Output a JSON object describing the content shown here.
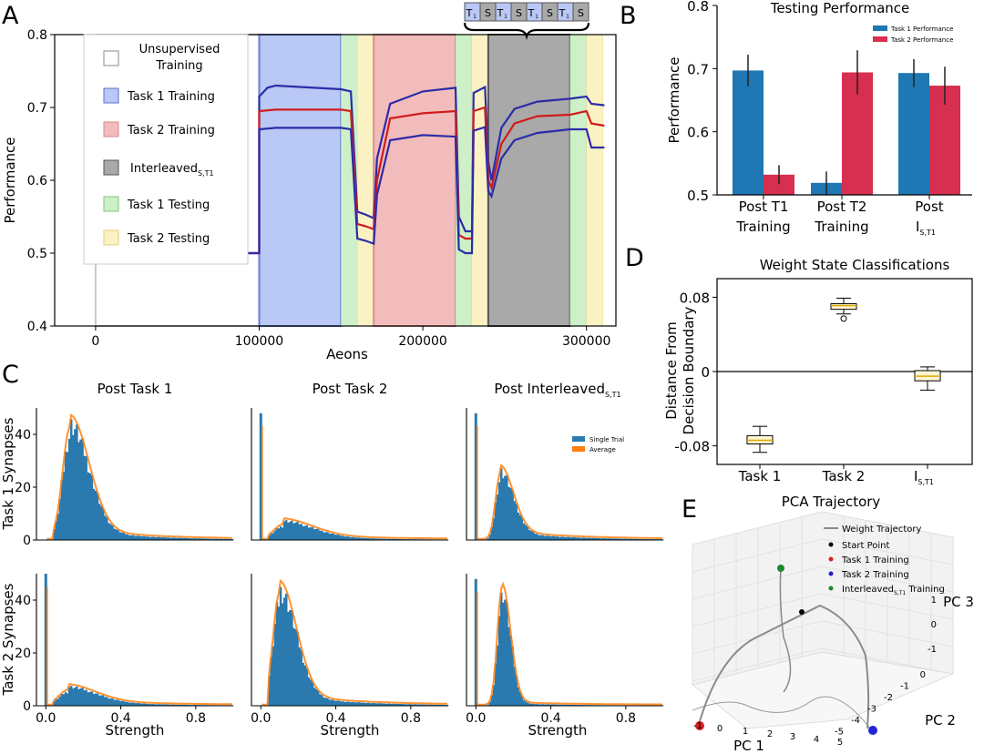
{
  "panel_letters": {
    "A": "A",
    "B": "B",
    "C": "C",
    "D": "D",
    "E": "E"
  },
  "colors": {
    "task1": "#1f77b4",
    "task2": "#d62f4f",
    "single": "#2a7ab0",
    "average": "#ff7f0e",
    "blue_band": "#b9c8f4",
    "red_band": "#f3bcbc",
    "green_band": "#cdf0c8",
    "yellow_band": "#fbf2c4",
    "gray_band": "#a9a9a9",
    "line_blue": "#2c2ca8",
    "line_red": "#d01c1c"
  },
  "chart_data": [
    {
      "id": "A",
      "type": "line",
      "xlabel": "Aeons",
      "ylabel": "Performance",
      "xlim": [
        -25000,
        318000
      ],
      "ylim": [
        0.4,
        0.8
      ],
      "xticks": [
        0,
        100000,
        200000,
        300000
      ],
      "xtick_labels": [
        "0",
        "100000",
        "200000",
        "300000"
      ],
      "yticks": [
        0.4,
        0.5,
        0.6,
        0.7,
        0.8
      ],
      "ytick_labels": [
        "0.4",
        "0.5",
        "0.6",
        "0.7",
        "0.8"
      ],
      "phases": [
        {
          "name": "Unsupervised Training",
          "start": 0,
          "end": 100000,
          "color": "white"
        },
        {
          "name": "Task 1 Training",
          "start": 100000,
          "end": 150000,
          "color": "blue"
        },
        {
          "name": "Task 1 Testing",
          "start": 150000,
          "end": 160000,
          "color": "green"
        },
        {
          "name": "Task 2 Testing",
          "start": 160000,
          "end": 170000,
          "color": "yellow"
        },
        {
          "name": "Task 2 Training",
          "start": 170000,
          "end": 220000,
          "color": "red"
        },
        {
          "name": "Task 1 Testing",
          "start": 220000,
          "end": 230000,
          "color": "green"
        },
        {
          "name": "Task 2 Testing",
          "start": 230000,
          "end": 240000,
          "color": "yellow"
        },
        {
          "name": "Interleaved",
          "start": 240000,
          "end": 290000,
          "color": "gray"
        },
        {
          "name": "Task 1 Testing",
          "start": 290000,
          "end": 300000,
          "color": "green"
        },
        {
          "name": "Task 2 Testing",
          "start": 300000,
          "end": 310000,
          "color": "yellow"
        }
      ],
      "legend": [
        {
          "label_lines": [
            "Unsupervised",
            "Training"
          ],
          "color": "white"
        },
        {
          "label_lines": [
            "Task 1 Training"
          ],
          "color": "blue"
        },
        {
          "label_lines": [
            "Task 2 Training"
          ],
          "color": "red"
        },
        {
          "label_main": "Interleaved",
          "label_sub": "S,T1",
          "color": "gray"
        },
        {
          "label_lines": [
            "Task 1 Testing"
          ],
          "color": "green"
        },
        {
          "label_lines": [
            "Task 2 Testing"
          ],
          "color": "yellow"
        }
      ],
      "schedule_boxes": [
        "T1",
        "S",
        "T1",
        "S",
        "T1",
        "S",
        "T1",
        "S"
      ],
      "series": [
        {
          "name": "upper",
          "points": [
            [
              0,
              0.5
            ],
            [
              100000,
              0.5
            ],
            [
              100001,
              0.715
            ],
            [
              105000,
              0.727
            ],
            [
              110000,
              0.73
            ],
            [
              150000,
              0.725
            ],
            [
              156000,
              0.722
            ],
            [
              160000,
              0.557
            ],
            [
              165000,
              0.553
            ],
            [
              170000,
              0.548
            ],
            [
              172000,
              0.63
            ],
            [
              180000,
              0.705
            ],
            [
              200000,
              0.722
            ],
            [
              220000,
              0.727
            ],
            [
              222000,
              0.55
            ],
            [
              226000,
              0.53
            ],
            [
              230000,
              0.53
            ],
            [
              231000,
              0.72
            ],
            [
              238000,
              0.728
            ],
            [
              240000,
              0.625
            ],
            [
              242000,
              0.6
            ],
            [
              248000,
              0.672
            ],
            [
              256000,
              0.698
            ],
            [
              270000,
              0.708
            ],
            [
              290000,
              0.712
            ],
            [
              300000,
              0.715
            ],
            [
              303000,
              0.705
            ],
            [
              311000,
              0.703
            ]
          ]
        },
        {
          "name": "average",
          "points": [
            [
              0,
              0.5
            ],
            [
              100000,
              0.5
            ],
            [
              100001,
              0.695
            ],
            [
              110000,
              0.697
            ],
            [
              150000,
              0.697
            ],
            [
              156000,
              0.695
            ],
            [
              160000,
              0.54
            ],
            [
              165000,
              0.537
            ],
            [
              170000,
              0.533
            ],
            [
              172000,
              0.6
            ],
            [
              180000,
              0.685
            ],
            [
              200000,
              0.692
            ],
            [
              220000,
              0.695
            ],
            [
              222000,
              0.525
            ],
            [
              226000,
              0.52
            ],
            [
              230000,
              0.52
            ],
            [
              231000,
              0.695
            ],
            [
              238000,
              0.7
            ],
            [
              240000,
              0.6
            ],
            [
              242000,
              0.59
            ],
            [
              248000,
              0.65
            ],
            [
              256000,
              0.678
            ],
            [
              270000,
              0.688
            ],
            [
              290000,
              0.69
            ],
            [
              300000,
              0.695
            ],
            [
              303000,
              0.678
            ],
            [
              311000,
              0.675
            ]
          ]
        },
        {
          "name": "lower",
          "points": [
            [
              0,
              0.5
            ],
            [
              100000,
              0.5
            ],
            [
              100001,
              0.67
            ],
            [
              110000,
              0.672
            ],
            [
              150000,
              0.672
            ],
            [
              156000,
              0.67
            ],
            [
              160000,
              0.52
            ],
            [
              165000,
              0.517
            ],
            [
              170000,
              0.513
            ],
            [
              172000,
              0.58
            ],
            [
              180000,
              0.655
            ],
            [
              200000,
              0.662
            ],
            [
              220000,
              0.66
            ],
            [
              222000,
              0.505
            ],
            [
              226000,
              0.5
            ],
            [
              230000,
              0.5
            ],
            [
              231000,
              0.668
            ],
            [
              238000,
              0.673
            ],
            [
              240000,
              0.585
            ],
            [
              242000,
              0.578
            ],
            [
              248000,
              0.63
            ],
            [
              256000,
              0.655
            ],
            [
              270000,
              0.665
            ],
            [
              290000,
              0.67
            ],
            [
              300000,
              0.67
            ],
            [
              303000,
              0.645
            ],
            [
              311000,
              0.645
            ]
          ]
        }
      ]
    },
    {
      "id": "B",
      "type": "bar",
      "title": "Testing Performance",
      "ylabel": "Performance",
      "ylim": [
        0.5,
        0.8
      ],
      "yticks": [
        0.5,
        0.6,
        0.7,
        0.8
      ],
      "ytick_labels": [
        "0.5",
        "0.6",
        "0.7",
        "0.8"
      ],
      "categories": [
        {
          "lines": [
            "Post T1",
            "Training"
          ]
        },
        {
          "lines": [
            "Post T2",
            "Training"
          ]
        },
        {
          "line1": "Post",
          "main": "I",
          "sub": "S,T1"
        }
      ],
      "series": [
        {
          "name": "Task 1 Performance",
          "values": [
            0.697,
            0.519,
            0.693
          ],
          "errors": [
            0.025,
            0.018,
            0.022
          ]
        },
        {
          "name": "Task 2 Performance",
          "values": [
            0.532,
            0.694,
            0.673
          ],
          "errors": [
            0.015,
            0.035,
            0.03
          ]
        }
      ]
    },
    {
      "id": "D",
      "type": "box",
      "title": "Weight State Classifications",
      "ylabel_lines": [
        "Distance From",
        "Decision Boundary"
      ],
      "ylim": [
        -0.1,
        0.1
      ],
      "yticks": [
        -0.08,
        0,
        0.08
      ],
      "ytick_labels": [
        "-0.08",
        "0",
        "0.08"
      ],
      "categories": [
        {
          "label": "Task 1"
        },
        {
          "label": "Task 2"
        },
        {
          "main": "I",
          "sub": "S,T1"
        }
      ],
      "boxes": [
        {
          "whislo": -0.087,
          "q1": -0.078,
          "med": -0.074,
          "q3": -0.069,
          "whishi": -0.059,
          "fliers": []
        },
        {
          "whislo": 0.062,
          "q1": 0.067,
          "med": 0.071,
          "q3": 0.073,
          "whishi": 0.079,
          "fliers": [
            0.057
          ]
        },
        {
          "whislo": -0.02,
          "q1": -0.01,
          "med": -0.005,
          "q3": 0.001,
          "whishi": 0.005,
          "fliers": []
        }
      ]
    },
    {
      "id": "C",
      "type": "histogram",
      "col_titles": [
        {
          "main": "Post Task 1"
        },
        {
          "main": "Post Task 2"
        },
        {
          "main": "Post Interleaved",
          "sub": "S,T1"
        }
      ],
      "row_labels": [
        "Task 1 Synapses",
        "Task 2 Synapses"
      ],
      "xlabel": "Strength",
      "xlim": [
        -0.05,
        1.0
      ],
      "xticks": [
        0,
        0.4,
        0.8
      ],
      "xtick_labels": [
        "0.0",
        "0.4",
        "0.8"
      ],
      "ylim": [
        0,
        50
      ],
      "yticks": [
        0,
        20,
        40
      ],
      "ytick_labels": [
        "0",
        "20",
        "40"
      ],
      "legend": [
        "Single Trial",
        "Average"
      ],
      "panels": [
        {
          "spike": 0,
          "peak": 38,
          "center": 0.13,
          "sigma_l": 0.04,
          "sigma_r": 0.1,
          "tail": 4
        },
        {
          "spike": 48,
          "peak": 5,
          "center": 0.12,
          "sigma_l": 0.05,
          "sigma_r": 0.16,
          "tail": 2
        },
        {
          "spike": 48,
          "peak": 22,
          "center": 0.13,
          "sigma_l": 0.025,
          "sigma_r": 0.07,
          "tail": 3
        },
        {
          "spike": 50,
          "peak": 5,
          "center": 0.12,
          "sigma_l": 0.05,
          "sigma_r": 0.15,
          "tail": 2
        },
        {
          "spike": 0,
          "peak": 38,
          "center": 0.1,
          "sigma_l": 0.035,
          "sigma_r": 0.09,
          "tail": 4
        },
        {
          "spike": 48,
          "peak": 40,
          "center": 0.14,
          "sigma_l": 0.025,
          "sigma_r": 0.045,
          "tail": 1
        }
      ]
    },
    {
      "id": "E",
      "type": "scatter3d",
      "title": "PCA Trajectory",
      "axis_labels": {
        "x": "PC 1",
        "y": "PC 2",
        "z": "PC 3"
      },
      "x_ticks": [
        "-1",
        "0",
        "1",
        "2",
        "3",
        "4",
        "5"
      ],
      "y_ticks": [
        "0",
        "-1",
        "-2",
        "-3",
        "-4",
        "-5"
      ],
      "z_ticks": [
        "1",
        "0",
        "-1"
      ],
      "legend": [
        {
          "label": "Weight Trajectory"
        },
        {
          "label": "Start Point"
        },
        {
          "label": "Task 1 Training"
        },
        {
          "label": "Task 2 Training"
        },
        {
          "main": "Interleaved",
          "sub": "S,T1",
          "suffix": " Training"
        }
      ]
    }
  ]
}
